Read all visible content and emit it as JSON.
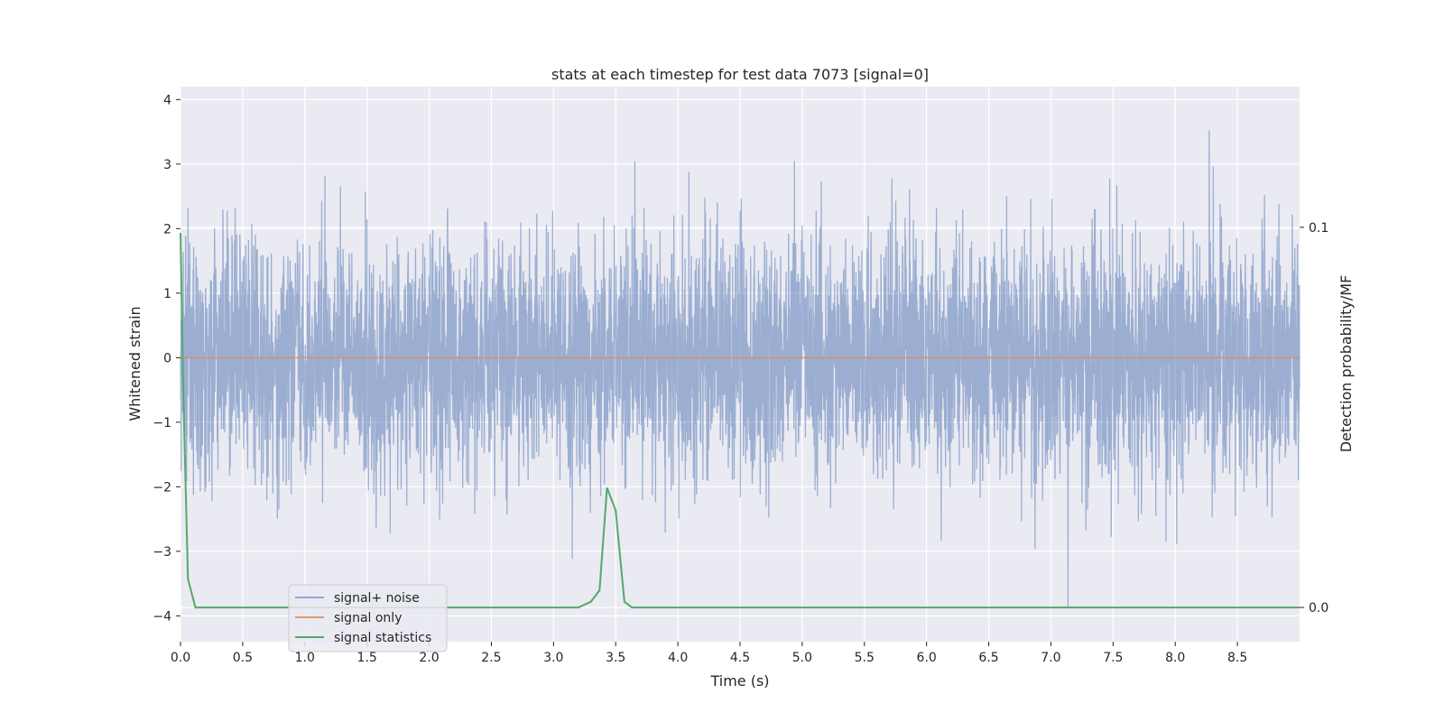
{
  "chart_data": {
    "type": "line",
    "title": "stats at each timestep for test data 7073 [signal=0]",
    "xlabel": "Time (s)",
    "ylabel": "Whitened strain",
    "y2label": "Detection probability/MF",
    "xlim": [
      0,
      9.0
    ],
    "ylim": [
      -4.4,
      4.2
    ],
    "y2lim": [
      -0.009,
      0.137
    ],
    "x_ticks": [
      "0.0",
      "0.5",
      "1.0",
      "1.5",
      "2.0",
      "2.5",
      "3.0",
      "3.5",
      "4.0",
      "4.5",
      "5.0",
      "5.5",
      "6.0",
      "6.5",
      "7.0",
      "7.5",
      "8.0",
      "8.5"
    ],
    "y_ticks": [
      "−4",
      "−3",
      "−2",
      "−1",
      "0",
      "1",
      "2",
      "3",
      "4"
    ],
    "y2_ticks": [
      "0.0",
      "0.1"
    ],
    "grid": true,
    "legend_position": "lower-left",
    "colors": {
      "noise": "#4c72b0",
      "signal": "#dd8452",
      "stats": "#55a868",
      "background": "#eaeaf2"
    },
    "noise_amplitude_std": 0.9,
    "series": [
      {
        "name": "signal+ noise",
        "axis": "left",
        "values_description": "random whitened strain, roughly within ±3.8"
      },
      {
        "name": "signal only",
        "axis": "left",
        "x": [
          0,
          9.0
        ],
        "values": [
          0,
          0
        ]
      },
      {
        "name": "signal statistics",
        "axis": "right",
        "x": [
          0.0,
          0.02,
          0.06,
          0.12,
          3.2,
          3.3,
          3.37,
          3.43,
          3.5,
          3.57,
          3.63,
          9.0
        ],
        "values": [
          0.0985,
          0.06,
          0.0075,
          0.0,
          0.0,
          0.0015,
          0.0045,
          0.0315,
          0.0255,
          0.0015,
          0.0,
          0.0
        ]
      }
    ]
  }
}
